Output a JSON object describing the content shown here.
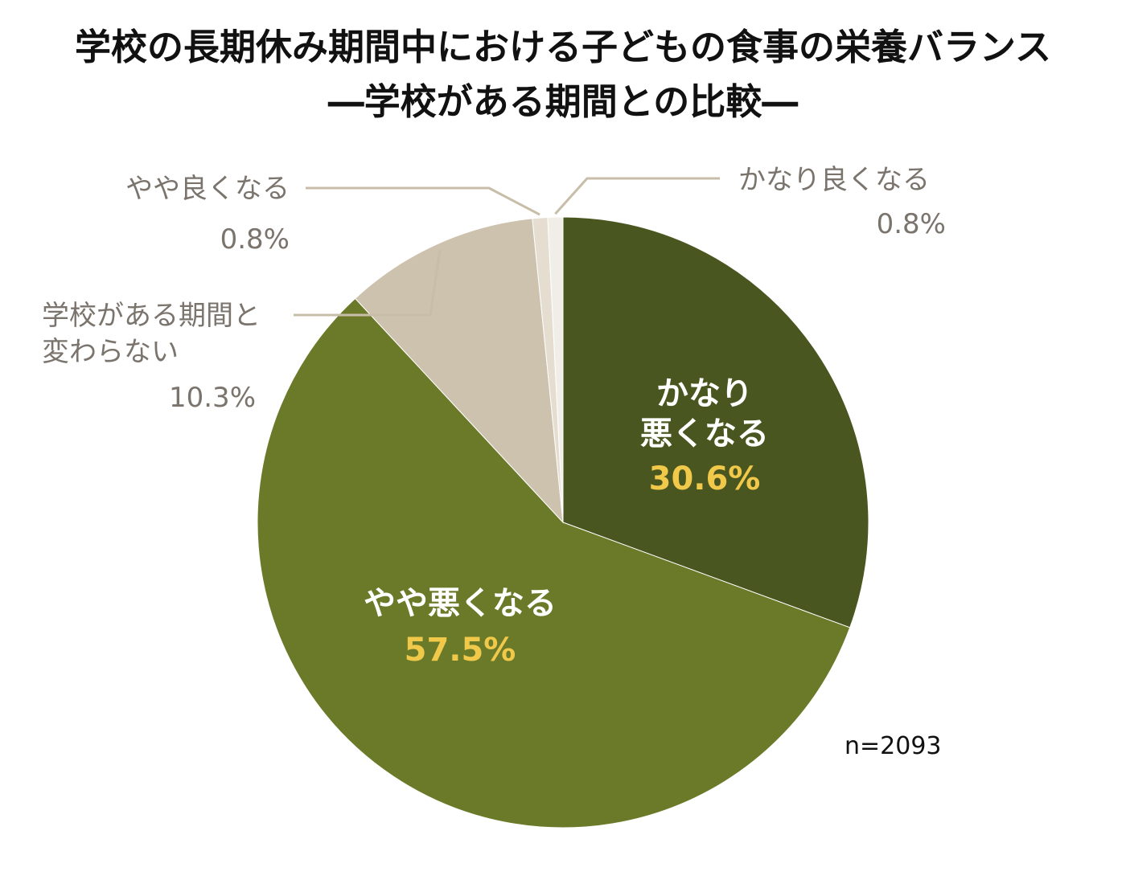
{
  "title_line1": "学校の長期休み期間中における子どもの食事の栄養バランス",
  "title_line2": "―学校がある期間との比較―",
  "note": "n=2093",
  "colors": {
    "highlight_value": "#f0c84a",
    "leader_line": "#c8bda8"
  },
  "chart_data": {
    "type": "pie",
    "title": "学校の長期休み期間中における子どもの食事の栄養バランス ―学校がある期間との比較―",
    "start": "12 o'clock, clockwise",
    "slices": [
      {
        "label_lines": [
          "かなり",
          "悪くなる"
        ],
        "value": 30.6,
        "value_text": "30.6%",
        "color": "#4a5620",
        "label_position": "inside"
      },
      {
        "label_lines": [
          "やや悪くなる"
        ],
        "value": 57.5,
        "value_text": "57.5%",
        "color": "#6b7a28",
        "label_position": "inside"
      },
      {
        "label_lines": [
          "学校がある期間と",
          "変わらない"
        ],
        "value": 10.3,
        "value_text": "10.3%",
        "color": "#cdc2ae",
        "label_position": "outside"
      },
      {
        "label_lines": [
          "やや良くなる"
        ],
        "value": 0.8,
        "value_text": "0.8%",
        "color": "#e4ddd0",
        "label_position": "outside"
      },
      {
        "label_lines": [
          "かなり良くなる"
        ],
        "value": 0.8,
        "value_text": "0.8%",
        "color": "#f1eee8",
        "label_position": "outside"
      }
    ]
  }
}
